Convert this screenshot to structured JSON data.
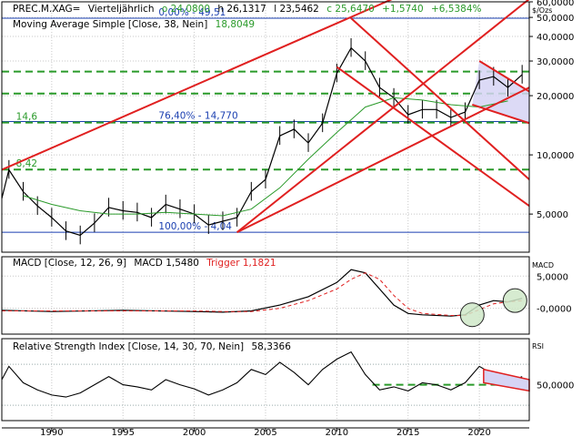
{
  "header": {
    "symbol": "PREC.M.XAG=",
    "period": "Vierteljährlich",
    "open": "o 24,0800",
    "high": "h 26,1317",
    "low": "l 23,5462",
    "close": "c 25,6470",
    "change": "+1,5740",
    "change_pct": "+6,5384%"
  },
  "colors": {
    "green": "#2a9a2a",
    "red": "#e02020",
    "blue": "#1a3fb0",
    "black": "#000000",
    "grid": "#c8c8c8",
    "bubble_fill": "#cfe8c8"
  },
  "chart_data": [
    {
      "panel": "price",
      "type": "line",
      "unit_label": "$/Ozs",
      "scale": "log",
      "ylim": [
        3.2,
        60
      ],
      "x_ticks": [
        1990,
        1995,
        2000,
        2005,
        2010,
        2015,
        2020
      ],
      "y_ticks": [
        {
          "value": 60,
          "label": "60,0000"
        },
        {
          "value": 50,
          "label": "50,0000"
        },
        {
          "value": 40,
          "label": "40,0000"
        },
        {
          "value": 30,
          "label": "30,0000"
        },
        {
          "value": 20,
          "label": "20,0000"
        },
        {
          "value": 10,
          "label": "10,0000"
        },
        {
          "value": 5,
          "label": "5,0000"
        }
      ],
      "series": [
        {
          "name": "Moving Average Simple [Close, 38, Nein]",
          "value_label": "18,8049",
          "x": [
            1988,
            1990,
            1992,
            1994,
            1996,
            1998,
            2000,
            2002,
            2004,
            2006,
            2008,
            2010,
            2012,
            2014,
            2016,
            2018,
            2020,
            2022
          ],
          "y": [
            6.2,
            5.6,
            5.2,
            5.0,
            5.0,
            5.1,
            5.0,
            4.9,
            5.3,
            6.8,
            9.5,
            13.0,
            17.5,
            19.5,
            19.0,
            18.0,
            17.5,
            18.8
          ]
        },
        {
          "name": "PREC.M.XAG=",
          "x": [
            1986.5,
            1987,
            1988,
            1989,
            1990,
            1991,
            1992,
            1993,
            1994,
            1995,
            1996,
            1997,
            1998,
            1999,
            2000,
            2001,
            2002,
            2003,
            2004,
            2005,
            2006,
            2007,
            2008,
            2009,
            2010,
            2011,
            2012,
            2013,
            2014,
            2015,
            2016,
            2017,
            2018,
            2019,
            2020,
            2021,
            2022,
            2023
          ],
          "y": [
            6.0,
            8.4,
            6.5,
            5.5,
            4.8,
            4.1,
            3.9,
            4.5,
            5.4,
            5.2,
            5.1,
            4.8,
            5.6,
            5.3,
            5.0,
            4.4,
            4.6,
            4.8,
            6.5,
            7.5,
            12.5,
            13.5,
            11.5,
            14.5,
            26.0,
            35.0,
            30.0,
            22.0,
            19.5,
            16.0,
            17.0,
            17.0,
            15.5,
            16.5,
            24.0,
            25.0,
            22.0,
            25.6
          ]
        }
      ],
      "horizontal_levels": [
        {
          "value": 49.51,
          "label": "0,00% - 49,51",
          "style": "blue"
        },
        {
          "value": 14.77,
          "label": "76,40% - 14,770",
          "style": "blue"
        },
        {
          "value": 4.04,
          "label": "100,00% - 4,04",
          "style": "blue"
        },
        {
          "value": 14.6,
          "label": "14,6",
          "style": "green-dashed"
        },
        {
          "value": 8.42,
          "label": "8,42",
          "style": "green-dashed"
        },
        {
          "value": 26.5,
          "label": "",
          "style": "green-dashed"
        },
        {
          "value": 20.5,
          "label": "",
          "style": "green-dashed"
        }
      ],
      "trendlines": [
        {
          "from": [
            1986.5,
            8.4
          ],
          "to": [
            2019,
            90
          ]
        },
        {
          "from": [
            2003,
            4.04
          ],
          "to": [
            2023.5,
            62
          ]
        },
        {
          "from": [
            2003,
            4.04
          ],
          "to": [
            2023.5,
            22
          ]
        },
        {
          "from": [
            2010,
            28
          ],
          "to": [
            2023.5,
            5.5
          ]
        },
        {
          "from": [
            2011,
            49.5
          ],
          "to": [
            2023.5,
            7.5
          ]
        },
        {
          "from": [
            2020,
            30
          ],
          "to": [
            2023.5,
            21
          ]
        },
        {
          "from": [
            2019.5,
            18
          ],
          "to": [
            2023.5,
            14.5
          ]
        }
      ]
    },
    {
      "panel": "macd",
      "type": "line",
      "title": "MACD [Close, 12, 26, 9]",
      "macd_label": "MACD 1,5480",
      "trigger_label": "Trigger 1,1821",
      "side_label": "MACD",
      "ylim": [
        -4,
        8
      ],
      "y_ticks": [
        {
          "value": 5,
          "label": "5,0000"
        },
        {
          "value": 0,
          "label": "-0,0000"
        }
      ],
      "series": [
        {
          "name": "MACD",
          "x": [
            1986.5,
            1990,
            1995,
            2000,
            2002,
            2004,
            2006,
            2008,
            2010,
            2011,
            2012,
            2013,
            2014,
            2015,
            2016,
            2018,
            2019,
            2020,
            2021,
            2022,
            2023
          ],
          "y": [
            -0.3,
            -0.5,
            -0.3,
            -0.5,
            -0.6,
            -0.4,
            0.5,
            1.8,
            4.0,
            6.0,
            5.5,
            3.0,
            0.5,
            -0.8,
            -1.0,
            -1.2,
            -1.0,
            0.5,
            1.2,
            1.0,
            1.55
          ]
        },
        {
          "name": "Trigger",
          "x": [
            1986.5,
            1990,
            1995,
            2000,
            2002,
            2004,
            2006,
            2008,
            2010,
            2011,
            2012,
            2013,
            2014,
            2015,
            2016,
            2018,
            2019,
            2020,
            2021,
            2022,
            2023
          ],
          "y": [
            -0.4,
            -0.4,
            -0.4,
            -0.4,
            -0.5,
            -0.5,
            0.0,
            1.2,
            3.0,
            4.5,
            5.5,
            4.5,
            2.0,
            0.0,
            -0.8,
            -1.1,
            -1.1,
            -0.2,
            0.7,
            1.0,
            1.18
          ]
        }
      ]
    },
    {
      "panel": "rsi",
      "type": "line",
      "title": "Relative Strength Index [Close, 14, 30, 70, Nein]",
      "value_label": "58,3366",
      "side_label": "RSI",
      "ylim": [
        15,
        95
      ],
      "y_ticks": [
        {
          "value": 50,
          "label": "50,0000"
        }
      ],
      "series": [
        {
          "name": "RSI",
          "x": [
            1986.5,
            1987,
            1988,
            1989,
            1990,
            1991,
            1992,
            1993,
            1994,
            1995,
            1996,
            1997,
            1998,
            1999,
            2000,
            2001,
            2002,
            2003,
            2004,
            2005,
            2006,
            2007,
            2008,
            2009,
            2010,
            2011,
            2012,
            2013,
            2014,
            2015,
            2016,
            2017,
            2018,
            2019,
            2020,
            2021,
            2022,
            2023
          ],
          "y": [
            55,
            68,
            52,
            45,
            40,
            38,
            42,
            50,
            58,
            50,
            48,
            45,
            55,
            50,
            46,
            40,
            45,
            52,
            65,
            60,
            72,
            62,
            50,
            65,
            75,
            82,
            60,
            45,
            48,
            44,
            52,
            50,
            45,
            52,
            68,
            60,
            52,
            58
          ]
        }
      ],
      "levels": [
        {
          "value": 70,
          "style": "dotted"
        },
        {
          "value": 50,
          "style": "green-dashed"
        },
        {
          "value": 30,
          "style": "dotted"
        }
      ]
    }
  ]
}
